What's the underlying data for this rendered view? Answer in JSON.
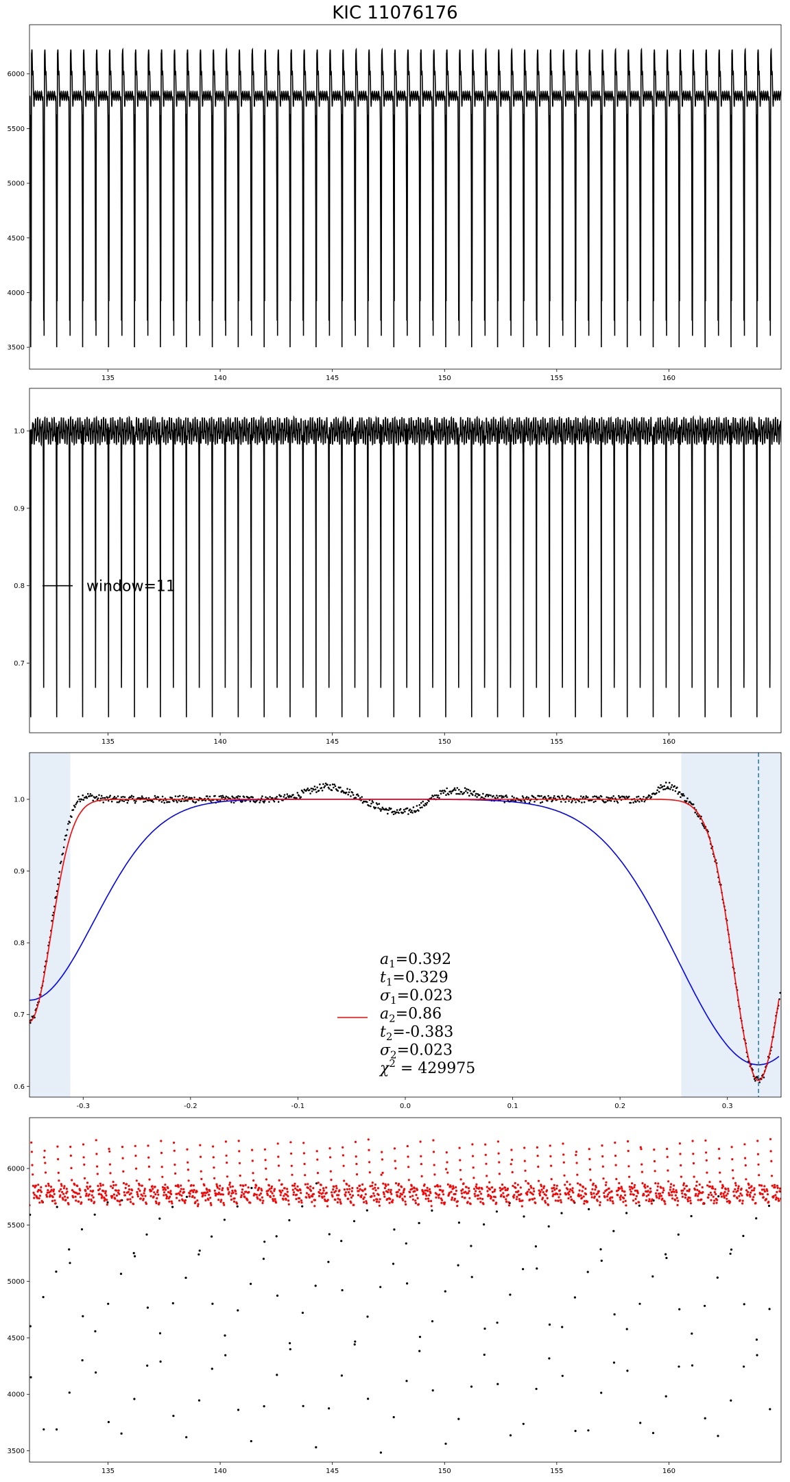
{
  "title": "KIC 11076176",
  "chart_data": [
    {
      "type": "line",
      "xlim": [
        131.5,
        165
      ],
      "ylim": [
        3300,
        6450
      ],
      "xticks": [
        135,
        140,
        145,
        150,
        155,
        160
      ],
      "yticks": [
        3500,
        4000,
        4500,
        5000,
        5500,
        6000
      ],
      "series": [
        {
          "color": "#000000",
          "period": 0.578,
          "phase": 0.35,
          "baseline": 5800,
          "peak": 6250,
          "min": 3500,
          "x_range": [
            131.5,
            165
          ]
        }
      ]
    },
    {
      "type": "line",
      "xlim": [
        131.5,
        165
      ],
      "ylim": [
        0.61,
        1.055
      ],
      "xticks": [
        135,
        140,
        145,
        150,
        155,
        160
      ],
      "yticks": [
        0.7,
        0.8,
        0.9,
        1.0
      ],
      "legend": {
        "label": "window=11",
        "color": "#000000",
        "placement": "center-left"
      },
      "series": [
        {
          "name": "window=11",
          "color": "#000000",
          "period": 0.578,
          "phase": 0.35,
          "baseline": 1.0,
          "min": 0.63,
          "x_range": [
            131.5,
            165
          ]
        }
      ]
    },
    {
      "type": "scatter",
      "xlim": [
        -0.35,
        0.35
      ],
      "ylim": [
        0.585,
        1.065
      ],
      "xticks": [
        -0.3,
        -0.2,
        -0.1,
        0.0,
        0.1,
        0.2,
        0.3
      ],
      "yticks": [
        0.6,
        0.7,
        0.8,
        0.9,
        1.0
      ],
      "shaded_regions": [
        [
          -0.35,
          -0.312
        ],
        [
          0.257,
          0.35
        ]
      ],
      "vline": {
        "x": 0.329,
        "color": "#1f77b4",
        "style": "dashed"
      },
      "series": [
        {
          "kind": "points",
          "color": "#000000",
          "description_key": "phase-folded data"
        },
        {
          "kind": "line",
          "color": "#ff0000",
          "a1": 0.392,
          "t1": 0.329,
          "sigma1": 0.023,
          "a2": 0.86,
          "t2": -0.383,
          "sigma2": 0.023
        },
        {
          "kind": "line",
          "color": "#0000ff",
          "depth": 0.37,
          "center": 0.329,
          "width": 0.075
        }
      ],
      "legend": {
        "color": "#ff0000",
        "placement": "bottom-center",
        "lines": [
          {
            "sym": "a",
            "sub": "1",
            "val": "=0.392"
          },
          {
            "sym": "t",
            "sub": "1",
            "val": "=0.329"
          },
          {
            "sym": "σ",
            "sub": "1",
            "val": "=0.023"
          },
          {
            "sym": "a",
            "sub": "2",
            "val": "=0.86"
          },
          {
            "sym": "t",
            "sub": "2",
            "val": "=-0.383"
          },
          {
            "sym": "σ",
            "sub": "2",
            "val": "=0.023"
          },
          {
            "sym": "χ",
            "sup": "2",
            "val": " = 429975"
          }
        ]
      }
    },
    {
      "type": "scatter",
      "xlim": [
        131.5,
        165
      ],
      "ylim": [
        3400,
        6450
      ],
      "xticks": [
        135,
        140,
        145,
        150,
        155,
        160
      ],
      "yticks": [
        3500,
        4000,
        4500,
        5000,
        5500,
        6000
      ],
      "series": [
        {
          "kind": "points",
          "color": "#000000"
        },
        {
          "kind": "points",
          "color": "#ff0000"
        }
      ]
    }
  ]
}
